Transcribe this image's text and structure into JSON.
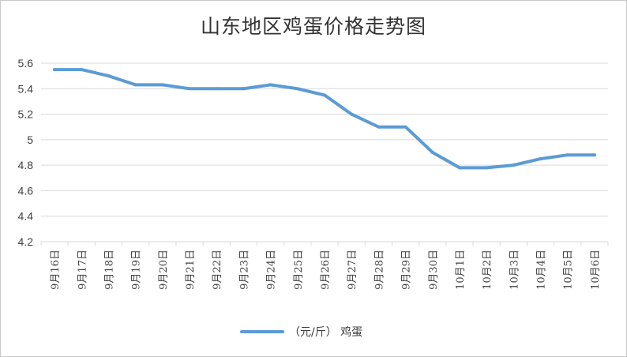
{
  "chart_data": {
    "type": "line",
    "title": "山东地区鸡蛋价格走势图",
    "categories": [
      "9月16日",
      "9月17日",
      "9月18日",
      "9月19日",
      "9月20日",
      "9月21日",
      "9月22日",
      "9月23日",
      "9月24日",
      "9月25日",
      "9月26日",
      "9月27日",
      "9月28日",
      "9月29日",
      "9月30日",
      "10月1日",
      "10月2日",
      "10月3日",
      "10月4日",
      "10月5日",
      "10月6日"
    ],
    "series": [
      {
        "name": "（元/斤） 鸡蛋",
        "values": [
          5.55,
          5.55,
          5.5,
          5.43,
          5.43,
          5.4,
          5.4,
          5.4,
          5.43,
          5.4,
          5.35,
          5.2,
          5.1,
          5.1,
          4.9,
          4.78,
          4.78,
          4.8,
          4.85,
          4.88,
          4.88
        ],
        "color": "#5b9bd5"
      }
    ],
    "ylim": [
      4.2,
      5.6
    ],
    "yticks": [
      "5.6",
      "5.4",
      "5.2",
      "5",
      "4.8",
      "4.6",
      "4.4",
      "4.2"
    ],
    "xlabel": "",
    "ylabel": "",
    "grid": true,
    "gridColor": "#d9d9d9",
    "legend": "bottom"
  }
}
